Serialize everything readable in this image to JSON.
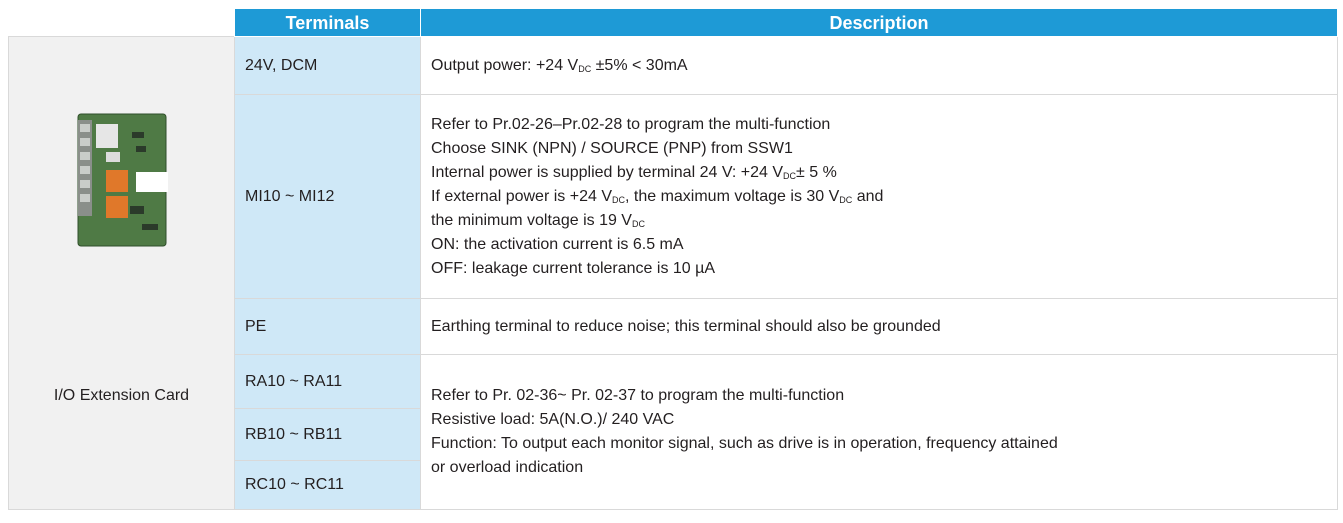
{
  "table": {
    "headers": [
      "Terminals",
      "Description"
    ],
    "card_label": "I/O Extension Card",
    "rows": [
      {
        "terminals": [
          "24V, DCM"
        ],
        "description": [
          [
            "Output power: +24 V",
            "DC",
            " ±5% < 30mA"
          ]
        ]
      },
      {
        "terminals": [
          "MI10 ~ MI12"
        ],
        "description": [
          [
            "Refer to Pr.02-26–Pr.02-28 to program the multi-function"
          ],
          [
            "Choose SINK (NPN) / SOURCE (PNP) from SSW1"
          ],
          [
            "Internal power is supplied by terminal 24 V: +24 V",
            "DC",
            "± 5 %"
          ],
          [
            "If external power is +24 V",
            "DC",
            ", the maximum voltage is 30 V",
            "DC",
            " and"
          ],
          [
            "the minimum voltage is 19 V",
            "DC"
          ],
          [
            "ON: the activation current is 6.5 mA"
          ],
          [
            "OFF: leakage current tolerance is 10 µA"
          ]
        ]
      },
      {
        "terminals": [
          "PE"
        ],
        "description": [
          [
            "Earthing terminal to reduce noise; this terminal should also be grounded"
          ]
        ]
      },
      {
        "terminals": [
          "RA10 ~ RA11",
          "RB10 ~ RB11",
          "RC10 ~ RC11"
        ],
        "description": [
          [
            "Refer to Pr. 02-36~ Pr. 02-37 to program the multi-function"
          ],
          [
            "Resistive load: 5A(N.O.)/ 240 VAC"
          ],
          [
            "Function: To output each monitor signal, such as drive is in operation, frequency attained"
          ],
          [
            "or overload indication"
          ]
        ]
      }
    ]
  }
}
